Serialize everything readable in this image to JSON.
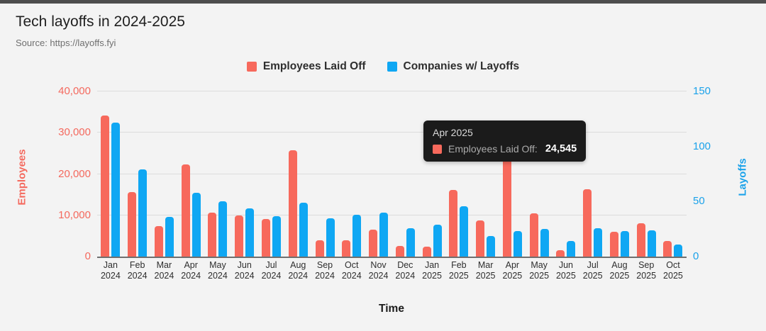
{
  "header": {
    "title": "Tech layoffs in 2024-2025",
    "source": "Source: https://layoffs.fyi"
  },
  "colors": {
    "employees": "#f7695c",
    "companies": "#0fa7f3",
    "left_axis_text": "#f4695e",
    "right_axis_text": "#1ba2ea",
    "background": "#f3f3f3",
    "top_strip": "#4d4d4d",
    "gridline": "#dcdcdc",
    "baseline": "#6f6f6f",
    "tooltip_bg": "#1b1b1b"
  },
  "legend": {
    "items": [
      {
        "label": "Employees Laid Off",
        "color": "#f7695c"
      },
      {
        "label": "Companies w/ Layoffs",
        "color": "#0fa7f3"
      }
    ]
  },
  "tooltip": {
    "title": "Apr 2025",
    "swatch_color": "#f7695c",
    "series_label": "Employees Laid Off:",
    "value": "24,545"
  },
  "chart_data": {
    "type": "bar",
    "title": "Tech layoffs in 2024-2025",
    "xlabel": "Time",
    "ylabel_left": "Employees",
    "ylabel_right": "Layoffs",
    "ylim_left": [
      0,
      40000
    ],
    "ylim_right": [
      0,
      150
    ],
    "grid": true,
    "legend_position": "top",
    "categories": [
      "Jan 2024",
      "Feb 2024",
      "Mar 2024",
      "Apr 2024",
      "May 2024",
      "Jun 2024",
      "Jul 2024",
      "Aug 2024",
      "Sep 2024",
      "Oct 2024",
      "Nov 2024",
      "Dec 2024",
      "Jan 2025",
      "Feb 2025",
      "Mar 2025",
      "Apr 2025",
      "May 2025",
      "Jun 2025",
      "Jul 2025",
      "Aug 2025",
      "Sep 2025",
      "Oct 2025"
    ],
    "series": [
      {
        "name": "Employees Laid Off",
        "axis": "left",
        "color": "#f7695c",
        "values": [
          34100,
          15600,
          7300,
          22400,
          10700,
          10000,
          9100,
          25800,
          4000,
          3900,
          6500,
          2500,
          2400,
          16200,
          8800,
          24545,
          10400,
          1500,
          16300,
          6000,
          8000,
          3700
        ]
      },
      {
        "name": "Companies w/ Layoffs",
        "axis": "right",
        "color": "#0fa7f3",
        "values": [
          122,
          79,
          36,
          58,
          50,
          44,
          37,
          49,
          35,
          38,
          40,
          26,
          29,
          46,
          19,
          23,
          25,
          14,
          26,
          23,
          24,
          11
        ]
      }
    ],
    "yticks_left": [
      {
        "value": 0,
        "label": "0"
      },
      {
        "value": 10000,
        "label": "10,000"
      },
      {
        "value": 20000,
        "label": "20,000"
      },
      {
        "value": 30000,
        "label": "30,000"
      },
      {
        "value": 40000,
        "label": "40,000"
      }
    ],
    "yticks_right": [
      {
        "value": 0,
        "label": "0"
      },
      {
        "value": 50,
        "label": "50"
      },
      {
        "value": 100,
        "label": "100"
      },
      {
        "value": 150,
        "label": "150"
      }
    ],
    "highlighted_point": {
      "category": "Apr 2025",
      "series": "Employees Laid Off",
      "value": 24545
    }
  }
}
